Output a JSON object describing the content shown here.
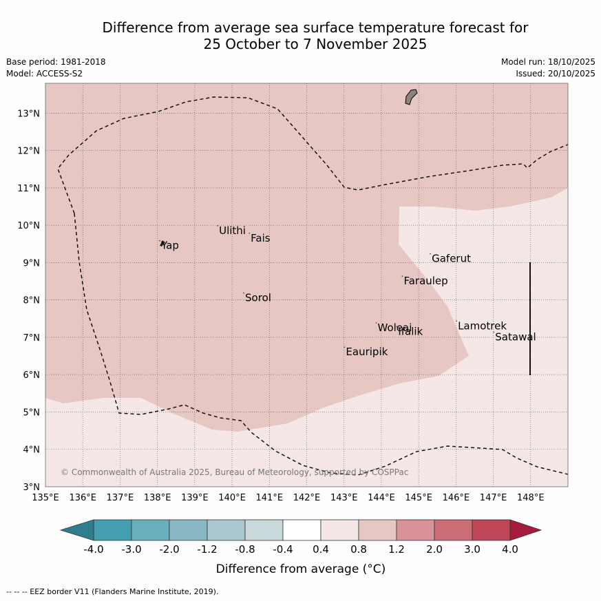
{
  "title": {
    "line1": "Difference from average sea surface temperature forecast for",
    "line2": "25 October to 7 November 2025"
  },
  "meta": {
    "base_period": "Base period: 1981-2018",
    "model": "Model: ACCESS-S2",
    "model_run": "Model run: 18/10/2025",
    "issued": "Issued: 20/10/2025"
  },
  "map": {
    "lon_range": [
      135,
      149
    ],
    "lat_range": [
      3,
      13.8
    ],
    "lon_ticks": [
      "135°E",
      "136°E",
      "137°E",
      "138°E",
      "139°E",
      "140°E",
      "141°E",
      "142°E",
      "143°E",
      "144°E",
      "145°E",
      "146°E",
      "147°E",
      "148°E"
    ],
    "lat_ticks": [
      "3°N",
      "4°N",
      "5°N",
      "6°N",
      "7°N",
      "8°N",
      "9°N",
      "10°N",
      "11°N",
      "12°N",
      "13°N"
    ],
    "colors": {
      "band_0_4_0_8": "#f4e7e6",
      "band_0_8_1_2": "#e6c7c3",
      "land": "#8a8180",
      "grid": "#555555"
    },
    "places": [
      {
        "name": "Yap",
        "lon": 138.1,
        "lat": 9.55
      },
      {
        "name": "Ulithi",
        "lon": 139.65,
        "lat": 9.95
      },
      {
        "name": "Fais",
        "lon": 140.5,
        "lat": 9.75
      },
      {
        "name": "Sorol",
        "lon": 140.35,
        "lat": 8.15
      },
      {
        "name": "Gaferut",
        "lon": 145.35,
        "lat": 9.2
      },
      {
        "name": "Faraulep",
        "lon": 144.6,
        "lat": 8.6
      },
      {
        "name": "Lamotrek",
        "lon": 146.05,
        "lat": 7.4
      },
      {
        "name": "Satawal",
        "lon": 147.05,
        "lat": 7.1
      },
      {
        "name": "Woleai",
        "lon": 143.9,
        "lat": 7.35
      },
      {
        "name": "Ifalik",
        "lon": 144.45,
        "lat": 7.25
      },
      {
        "name": "Eauripik",
        "lon": 143.05,
        "lat": 6.7
      }
    ],
    "copyright": "© Commonwealth of Australia 2025, Bureau of Meteorology, supported by COSPPac"
  },
  "colorbar": {
    "ticks": [
      "-4.0",
      "-3.0",
      "-2.0",
      "-1.2",
      "-0.8",
      "-0.4",
      "0.4",
      "0.8",
      "1.2",
      "2.0",
      "3.0",
      "4.0"
    ],
    "colors": [
      "#42a0b1",
      "#69aebc",
      "#89b8c4",
      "#a9c7cd",
      "#c8d9dc",
      "#ffffff",
      "#f4e7e6",
      "#e6c7c3",
      "#d99297",
      "#cc6d75",
      "#bf4656"
    ],
    "low_color": "#2e7f8d",
    "high_color": "#a51c3a",
    "label": "Difference from average (°C)"
  },
  "footnote": "--  --  -- EEZ border V11 (Flanders Marine Institute, 2019)."
}
